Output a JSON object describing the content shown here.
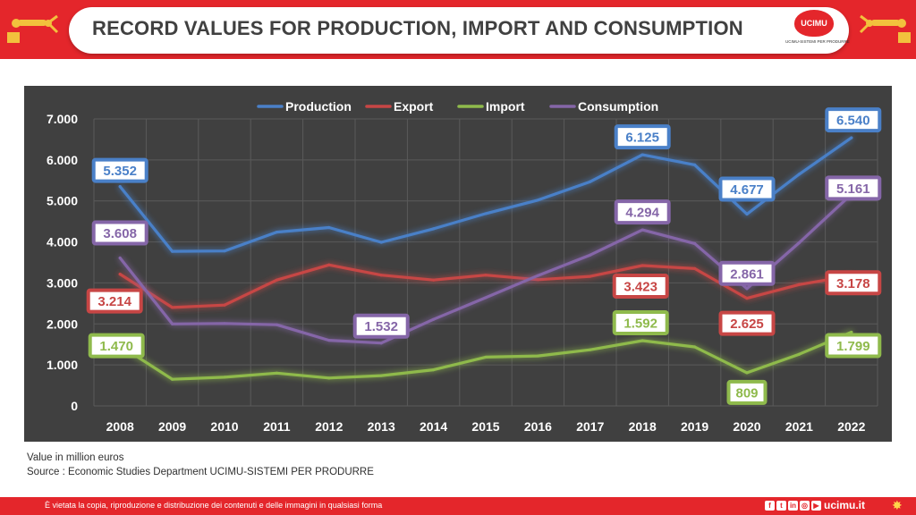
{
  "header": {
    "title": "RECORD VALUES FOR PRODUCTION, IMPORT AND CONSUMPTION"
  },
  "logo": {
    "text": "UCIMU",
    "subtitle": "UCIMU-SISTEMI PER PRODURRE"
  },
  "chart_data": {
    "type": "line",
    "title": "",
    "xlabel": "",
    "ylabel": "",
    "categories": [
      "2008",
      "2009",
      "2010",
      "2011",
      "2012",
      "2013",
      "2014",
      "2015",
      "2016",
      "2017",
      "2018",
      "2019",
      "2020",
      "2021",
      "2022"
    ],
    "ylim": [
      0,
      7000
    ],
    "yticks": [
      0,
      1000,
      2000,
      3000,
      4000,
      5000,
      6000,
      7000
    ],
    "ytick_labels": [
      "0",
      "1.000",
      "2.000",
      "3.000",
      "4.000",
      "5.000",
      "6.000",
      "7.000"
    ],
    "grid": true,
    "legend_position": "top",
    "series": [
      {
        "name": "Production",
        "color": "#4a80c8",
        "values": [
          5352,
          3770,
          3780,
          4240,
          4350,
          3990,
          4320,
          4690,
          5020,
          5470,
          6125,
          5880,
          4677,
          5650,
          6540
        ]
      },
      {
        "name": "Export",
        "color": "#c74645",
        "values": [
          3214,
          2400,
          2460,
          3070,
          3440,
          3190,
          3070,
          3190,
          3080,
          3160,
          3423,
          3350,
          2625,
          2960,
          3178
        ]
      },
      {
        "name": "Import",
        "color": "#8fba4c",
        "values": [
          1470,
          650,
          700,
          800,
          680,
          740,
          880,
          1190,
          1220,
          1370,
          1592,
          1440,
          809,
          1260,
          1799
        ]
      },
      {
        "name": "Consumption",
        "color": "#8566a8",
        "values": [
          3608,
          2000,
          2010,
          1980,
          1600,
          1532,
          2110,
          2640,
          3180,
          3680,
          4294,
          3960,
          2861,
          3980,
          5161
        ]
      }
    ],
    "annotations": [
      {
        "series": "Production",
        "category": "2008",
        "label": "5.352"
      },
      {
        "series": "Production",
        "category": "2018",
        "label": "6.125"
      },
      {
        "series": "Production",
        "category": "2020",
        "label": "4.677"
      },
      {
        "series": "Production",
        "category": "2022",
        "label": "6.540"
      },
      {
        "series": "Export",
        "category": "2008",
        "label": "3.214"
      },
      {
        "series": "Export",
        "category": "2018",
        "label": "3.423"
      },
      {
        "series": "Export",
        "category": "2020",
        "label": "2.625"
      },
      {
        "series": "Export",
        "category": "2022",
        "label": "3.178"
      },
      {
        "series": "Import",
        "category": "2008",
        "label": "1.470"
      },
      {
        "series": "Import",
        "category": "2018",
        "label": "1.592"
      },
      {
        "series": "Import",
        "category": "2020",
        "label": "809"
      },
      {
        "series": "Import",
        "category": "2022",
        "label": "1.799"
      },
      {
        "series": "Consumption",
        "category": "2008",
        "label": "3.608"
      },
      {
        "series": "Consumption",
        "category": "2013",
        "label": "1.532"
      },
      {
        "series": "Consumption",
        "category": "2018",
        "label": "4.294"
      },
      {
        "series": "Consumption",
        "category": "2020",
        "label": "2.861"
      },
      {
        "series": "Consumption",
        "category": "2022",
        "label": "5.161"
      }
    ]
  },
  "notes": {
    "unit": "Value in million euros",
    "source": "Source : Economic Studies Department UCIMU-SISTEMI PER PRODURRE"
  },
  "footer": {
    "disclaimer": "È vietata la copia, riproduzione e distribuzione dei contenuti e delle immagini in qualsiasi forma",
    "social": [
      {
        "icon": "facebook-icon",
        "glyph": "f"
      },
      {
        "icon": "twitter-icon",
        "glyph": "t"
      },
      {
        "icon": "linkedin-icon",
        "glyph": "in"
      },
      {
        "icon": "instagram-icon",
        "glyph": "◎"
      },
      {
        "icon": "youtube-icon",
        "glyph": "▶"
      }
    ],
    "site": "ucimu.it"
  }
}
